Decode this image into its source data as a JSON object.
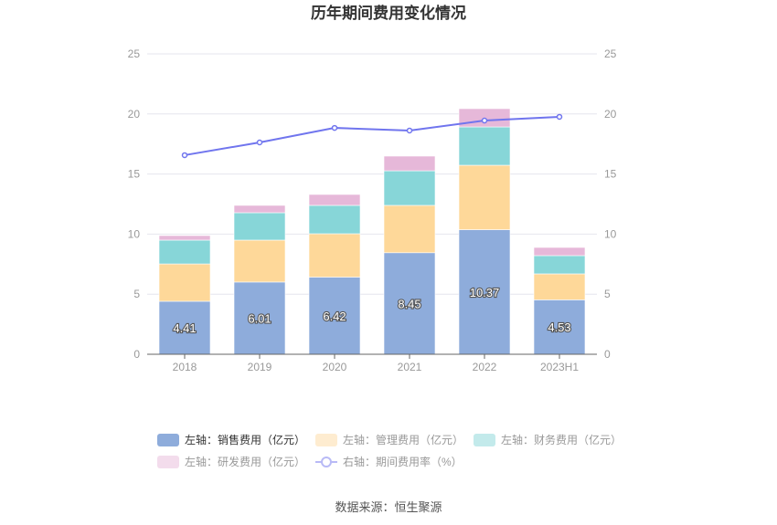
{
  "chart_data": {
    "type": "bar",
    "title": "历年期间费用变化情况",
    "categories": [
      "2018",
      "2019",
      "2020",
      "2021",
      "2022",
      "2023H1"
    ],
    "left_axis": {
      "ylim": [
        0,
        25
      ],
      "ticks": [
        "0",
        "5",
        "10",
        "15",
        "20",
        "25"
      ]
    },
    "right_axis": {
      "ylim": [
        0,
        25
      ],
      "ticks": [
        "0",
        "5",
        "10",
        "15",
        "20",
        "25"
      ]
    },
    "series": [
      {
        "name": "左轴：销售费用（亿元）",
        "type": "bar",
        "stack": true,
        "color": "#8eacdb",
        "legend_color": "#8eacdb",
        "values": [
          4.41,
          6.01,
          6.42,
          8.45,
          10.37,
          4.53
        ],
        "labels": [
          "4.41",
          "6.01",
          "6.42",
          "8.45",
          "10.37",
          "4.53"
        ]
      },
      {
        "name": "左轴：管理费用（亿元）",
        "type": "bar",
        "stack": true,
        "color": "#fed899",
        "legend_color": "#feecd0",
        "values": [
          3.11,
          3.49,
          3.61,
          3.94,
          5.36,
          2.16
        ]
      },
      {
        "name": "左轴：财务费用（亿元）",
        "type": "bar",
        "stack": true,
        "color": "#87d6d8",
        "legend_color": "#c3eaeb",
        "values": [
          1.98,
          2.28,
          2.36,
          2.88,
          3.19,
          1.52
        ]
      },
      {
        "name": "左轴：研发费用（亿元）",
        "type": "bar",
        "stack": true,
        "color": "#e6b8d9",
        "legend_color": "#f3dcec",
        "values": [
          0.38,
          0.61,
          0.91,
          1.22,
          1.52,
          0.68
        ]
      },
      {
        "name": "右轴：期间费用率（%）",
        "type": "line",
        "axis": "right",
        "color": "#7075ee",
        "legend_color": "#b8baf6",
        "values": [
          16.57,
          17.63,
          18.84,
          18.62,
          19.45,
          19.76
        ]
      }
    ],
    "legend_position": "bottom",
    "grid": true
  },
  "source": "数据来源：恒生聚源"
}
